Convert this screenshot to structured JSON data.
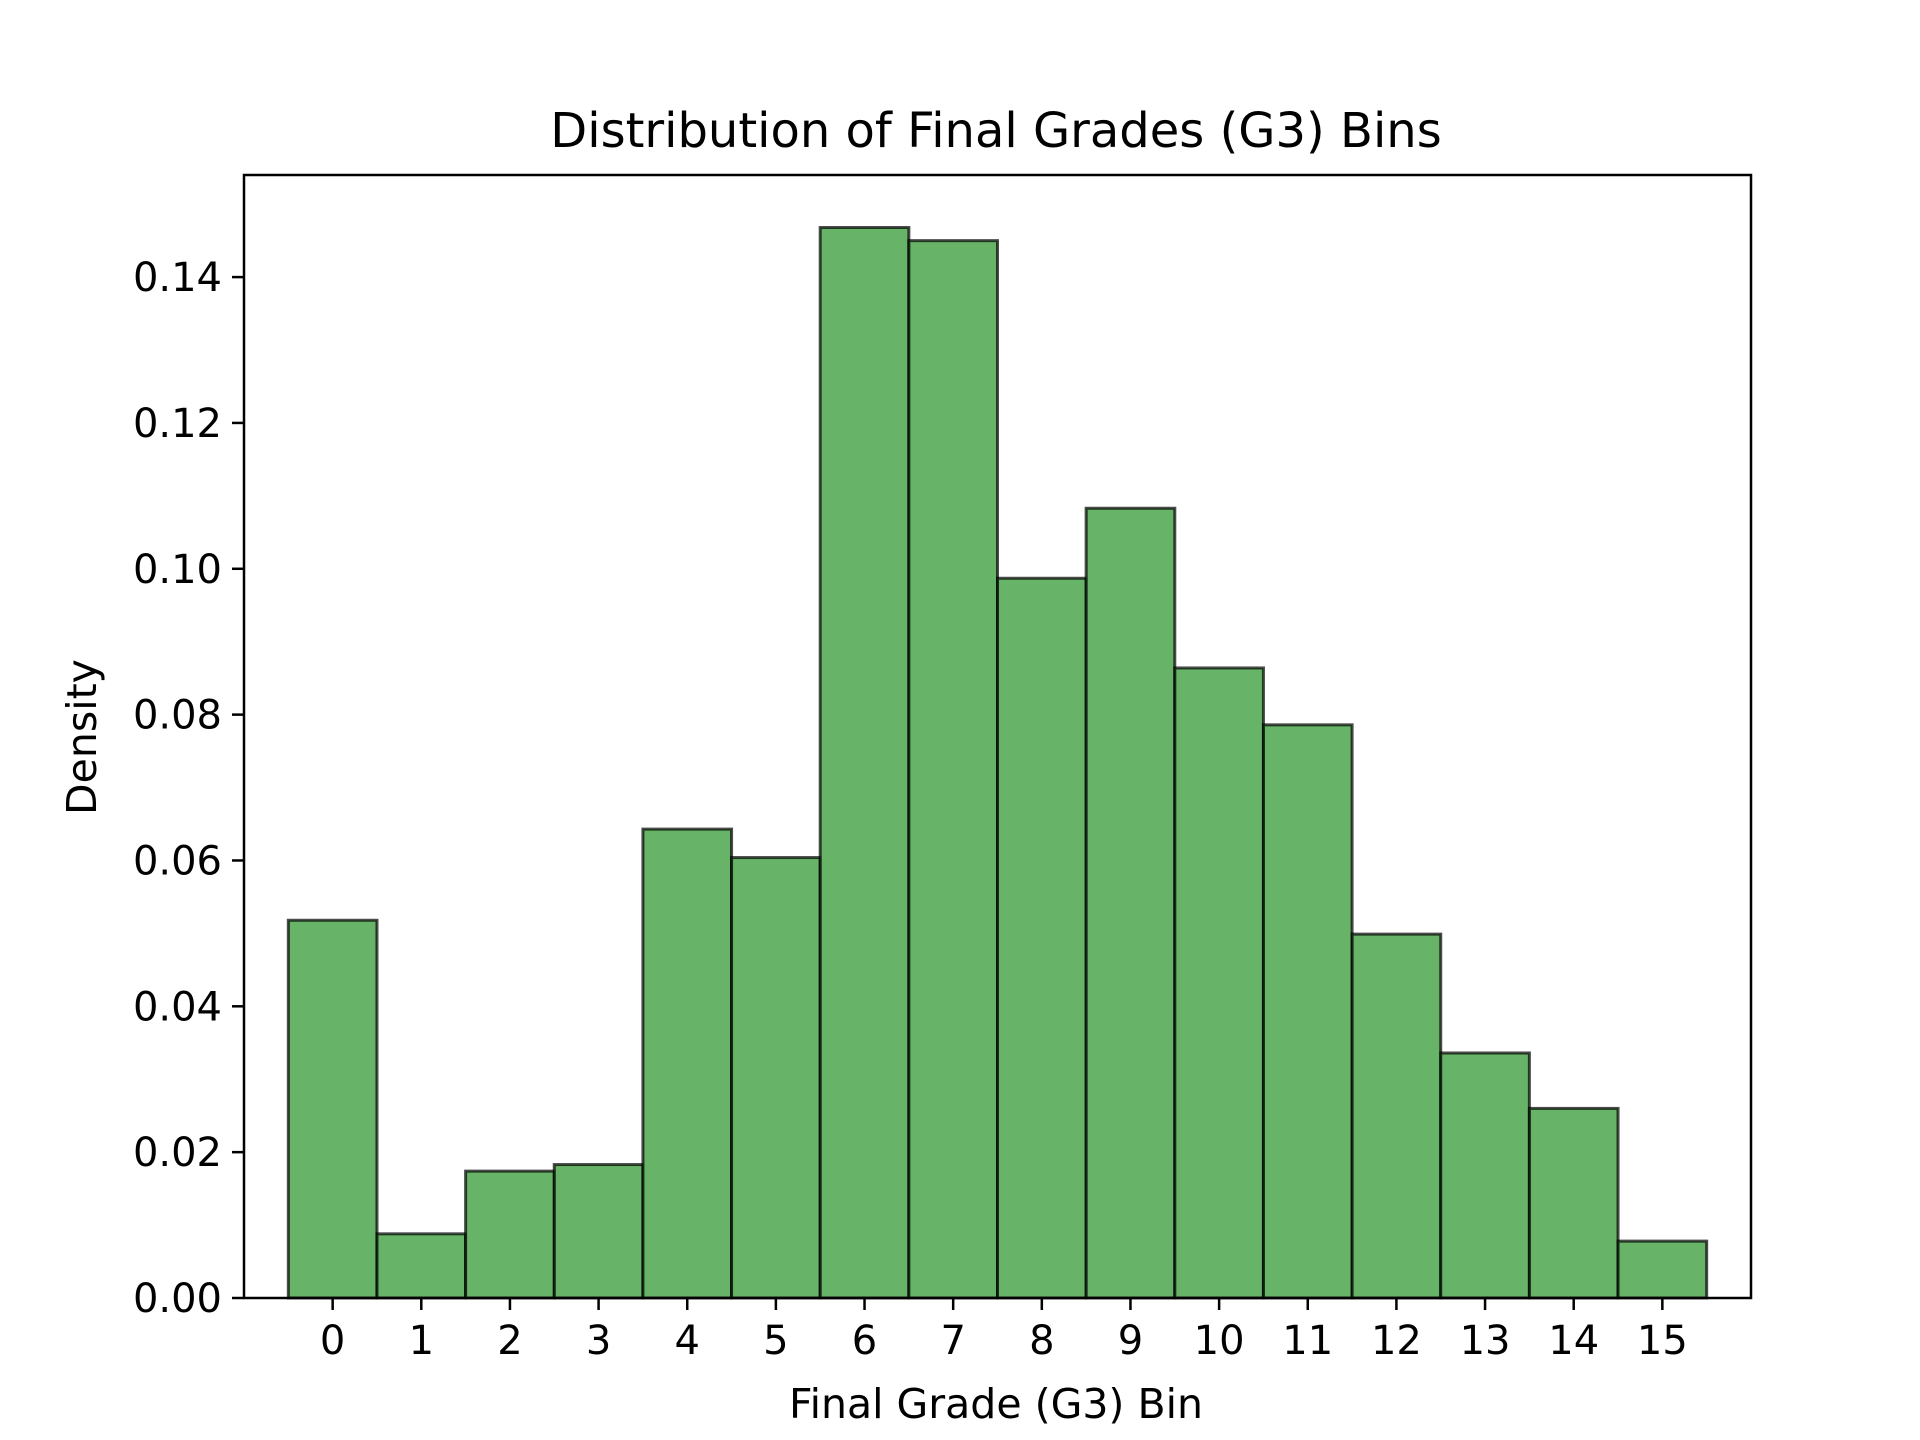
{
  "chart_data": {
    "type": "bar",
    "title": "Distribution of Final Grades (G3) Bins",
    "xlabel": "Final Grade (G3) Bin",
    "ylabel": "Density",
    "categories": [
      "0",
      "1",
      "2",
      "3",
      "4",
      "5",
      "6",
      "7",
      "8",
      "9",
      "10",
      "11",
      "12",
      "13",
      "14",
      "15"
    ],
    "values": [
      0.0518,
      0.0088,
      0.0174,
      0.0183,
      0.0643,
      0.0604,
      0.1468,
      0.145,
      0.0987,
      0.1083,
      0.0864,
      0.0786,
      0.0499,
      0.0336,
      0.026,
      0.0078
    ],
    "xlim": [
      -1,
      16
    ],
    "ylim": [
      0,
      0.154
    ],
    "yticks": [
      0.0,
      0.02,
      0.04,
      0.06,
      0.08,
      0.1,
      0.12,
      0.14
    ],
    "ytick_labels": [
      "0.00",
      "0.02",
      "0.04",
      "0.06",
      "0.08",
      "0.10",
      "0.12",
      "0.14"
    ],
    "bar_color": "#4ca64c",
    "bar_edge_color": "#000000",
    "grid": false,
    "legend": "none"
  }
}
